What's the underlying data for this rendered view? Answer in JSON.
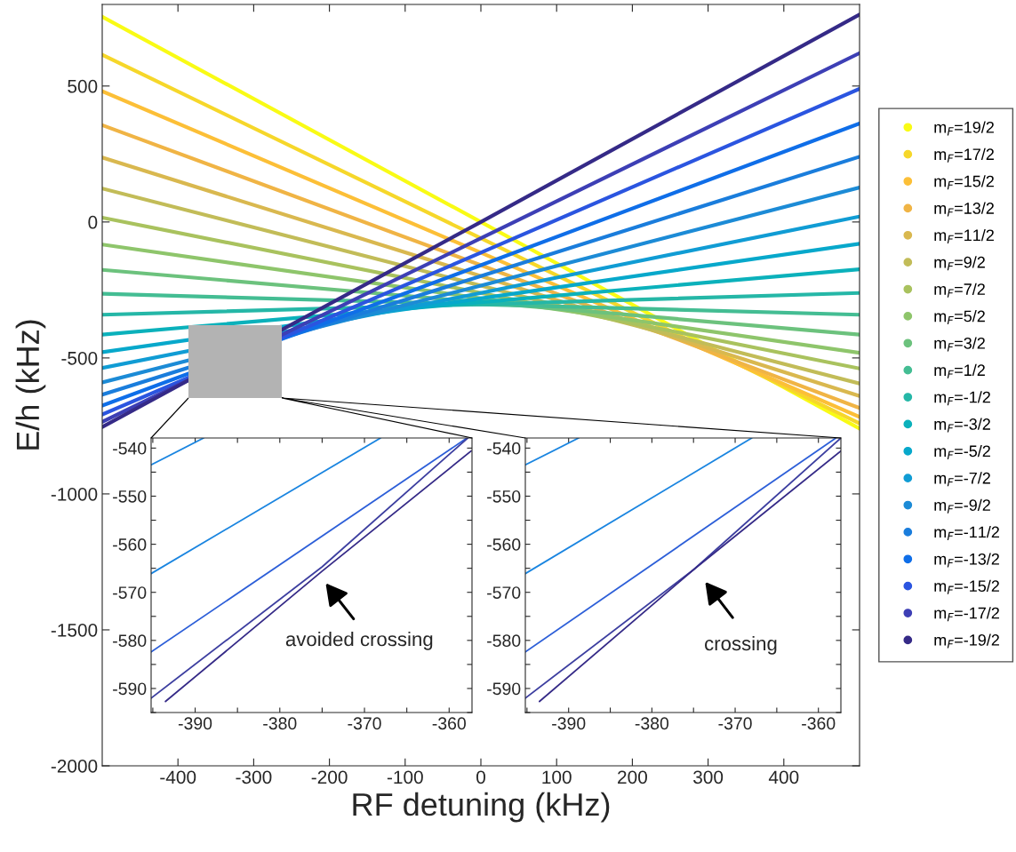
{
  "chart_data": [
    {
      "type": "line",
      "xlabel": "RF detuning (kHz)",
      "ylabel": "E/h (kHz)",
      "xlim": [
        -500,
        500
      ],
      "ylim": [
        -2000,
        800
      ],
      "xticks": [
        -400,
        -300,
        -200,
        -100,
        0,
        100,
        200,
        300,
        400
      ],
      "yticks": [
        -2000,
        -1500,
        -1000,
        -500,
        0,
        500
      ],
      "legend": "right",
      "x": [
        -500,
        0,
        500
      ],
      "series": [
        {
          "name": "m$_{F}$=19/2",
          "color": "#f9fb15",
          "values": [
            755,
            0,
            -760
          ]
        },
        {
          "name": "m$_{F}$=17/2",
          "color": "#f6d72a",
          "values": [
            615,
            -60,
            -741
          ]
        },
        {
          "name": "m$_{F}$=15/2",
          "color": "#fcbf37",
          "values": [
            481,
            -113,
            -717
          ]
        },
        {
          "name": "m$_{F}$=13/2",
          "color": "#f0b445",
          "values": [
            356,
            -159,
            -684
          ]
        },
        {
          "name": "m$_{F}$=11/2",
          "color": "#d9b84f",
          "values": [
            237,
            -199,
            -640
          ]
        },
        {
          "name": "m$_{F}$=9/2",
          "color": "#c2bc58",
          "values": [
            123,
            -234,
            -594
          ]
        },
        {
          "name": "m$_{F}$=7/2",
          "color": "#a9c25e",
          "values": [
            16,
            -261,
            -539
          ]
        },
        {
          "name": "m$_{F}$=5/2",
          "color": "#8ec56b",
          "values": [
            -83,
            -281,
            -481
          ]
        },
        {
          "name": "m$_{F}$=3/2",
          "color": "#6cc27d",
          "values": [
            -176,
            -295,
            -414
          ]
        },
        {
          "name": "m$_{F}$=1/2",
          "color": "#44bd93",
          "values": [
            -264,
            -303,
            -341
          ]
        },
        {
          "name": "m$_{F}$=-1/2",
          "color": "#25b7a7",
          "values": [
            -341,
            -303,
            -261
          ]
        },
        {
          "name": "m$_{F}$=-3/2",
          "color": "#0bb1bb",
          "values": [
            -414,
            -295,
            -174
          ]
        },
        {
          "name": "m$_{F}$=-5/2",
          "color": "#07a8cb",
          "values": [
            -479,
            -281,
            -80
          ]
        },
        {
          "name": "m$_{F}$=-7/2",
          "color": "#109cd4",
          "values": [
            -537,
            -261,
            20
          ]
        },
        {
          "name": "m$_{F}$=-9/2",
          "color": "#1c8bd6",
          "values": [
            -590,
            -234,
            127
          ]
        },
        {
          "name": "m$_{F}$=-11/2",
          "color": "#1a7ddc",
          "values": [
            -635,
            -199,
            240
          ]
        },
        {
          "name": "m$_{F}$=-13/2",
          "color": "#0f6ee8",
          "values": [
            -675,
            -159,
            362
          ]
        },
        {
          "name": "m$_{F}$=-15/2",
          "color": "#2b55e0",
          "values": [
            -708,
            -113,
            490
          ]
        },
        {
          "name": "m$_{F}$=-17/2",
          "color": "#3d3fb5",
          "values": [
            -735,
            -60,
            621
          ]
        },
        {
          "name": "m$_{F}$=-19/2",
          "color": "#352a87",
          "values": [
            -754,
            0,
            763
          ]
        }
      ]
    },
    {
      "type": "line",
      "xlim": [
        -395.2,
        -357.3
      ],
      "ylim": [
        -595,
        -537.9
      ],
      "xticks": [
        {
          "value": -395,
          "label": null
        },
        -390,
        {
          "value": -385,
          "label": null
        },
        -380,
        {
          "value": -375,
          "label": null
        },
        -370,
        {
          "value": -365,
          "label": null
        },
        -360
      ],
      "yticks": [
        {
          "value": -595,
          "label": null
        },
        -590,
        {
          "value": -585,
          "label": null
        },
        -580,
        {
          "value": -575,
          "label": null
        },
        -570,
        {
          "value": -565,
          "label": null
        },
        -560,
        {
          "value": -555,
          "label": null
        },
        -550,
        {
          "value": -545,
          "label": null
        },
        -540
      ],
      "annotations": [
        "avoided crossing"
      ],
      "series": [
        {
          "color": "#1a85e0",
          "x": [
            -395.2,
            -389.0
          ],
          "values": [
            -543.5,
            -537.9
          ]
        },
        {
          "color": "#1a85e0",
          "x": [
            -395.2,
            -368.1
          ],
          "values": [
            -566.1,
            -537.9
          ]
        },
        {
          "color": "#2d5fd8",
          "x": [
            -395.2,
            -357.9
          ],
          "values": [
            -582.4,
            -537.9
          ]
        },
        {
          "color": "#3d3fa0",
          "x": [
            -395.2,
            -375.0,
            -357.8
          ],
          "values": [
            -592.0,
            -564.7,
            -537.9
          ]
        },
        {
          "color": "#352a87",
          "x": [
            -393.5,
            -375.0,
            -357.4
          ],
          "values": [
            -592.7,
            -565.6,
            -540.6
          ]
        }
      ]
    },
    {
      "type": "line",
      "xlim": [
        -395.2,
        -357.3
      ],
      "ylim": [
        -595,
        -537.9
      ],
      "xticks": [
        {
          "value": -395,
          "label": null
        },
        -390,
        {
          "value": -385,
          "label": null
        },
        -380,
        {
          "value": -375,
          "label": null
        },
        -370,
        {
          "value": -365,
          "label": null
        },
        -360
      ],
      "yticks": [
        {
          "value": -595,
          "label": null
        },
        -590,
        {
          "value": -585,
          "label": null
        },
        -580,
        {
          "value": -575,
          "label": null
        },
        -570,
        {
          "value": -565,
          "label": null
        },
        -560,
        {
          "value": -555,
          "label": null
        },
        -550,
        {
          "value": -545,
          "label": null
        },
        -540
      ],
      "annotations": [
        "crossing"
      ],
      "series": [
        {
          "color": "#1a85e0",
          "x": [
            -395.2,
            -388.8
          ],
          "values": [
            -543.5,
            -537.9
          ]
        },
        {
          "color": "#1a85e0",
          "x": [
            -395.2,
            -368.0
          ],
          "values": [
            -566.1,
            -537.9
          ]
        },
        {
          "color": "#2d5fd8",
          "x": [
            -395.2,
            -357.9
          ],
          "values": [
            -582.4,
            -537.9
          ]
        },
        {
          "color": "#3d3fa0",
          "x": [
            -395.2,
            -375.0,
            -357.3
          ],
          "values": [
            -592.0,
            -565.3,
            -537.9
          ]
        },
        {
          "color": "#352a87",
          "x": [
            -393.5,
            -375.0,
            -357.3
          ],
          "values": [
            -592.7,
            -565.3,
            -540.6
          ]
        }
      ]
    }
  ]
}
